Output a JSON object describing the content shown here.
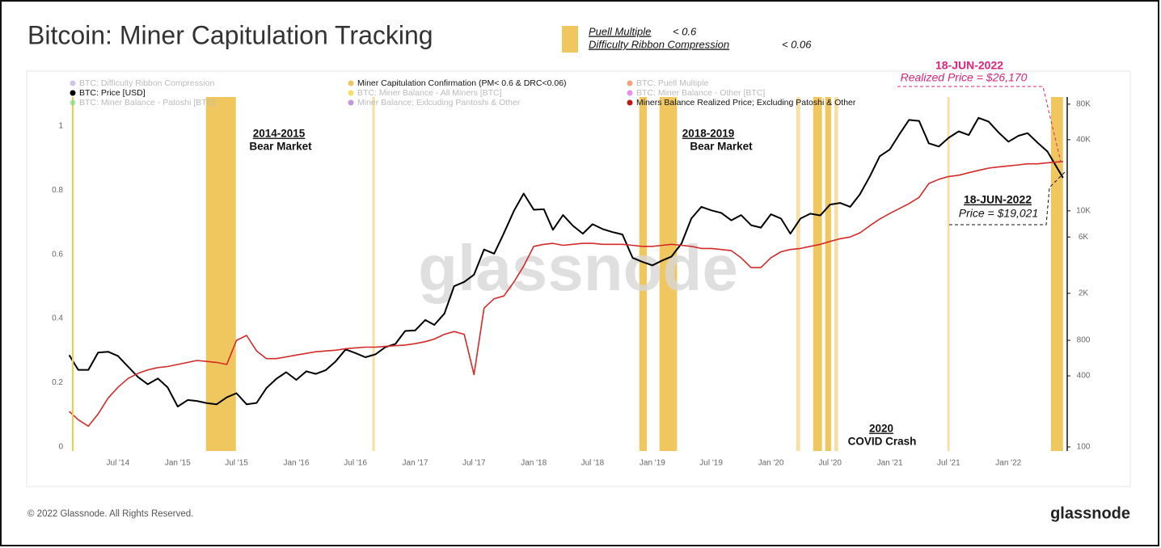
{
  "chart_data": {
    "type": "line",
    "title": "Bitcoin: Miner Capitulation Tracking",
    "header_legend": {
      "color": "#f0c75e",
      "items": [
        {
          "name": "Puell Multiple",
          "condition": "< 0.6"
        },
        {
          "name": "Difficulty Ribbon Compression",
          "condition": "< 0.06"
        }
      ]
    },
    "watermark": "glassnode",
    "x": [
      "2014-02",
      "2014-03",
      "2014-04",
      "2014-05",
      "2014-06",
      "2014-07",
      "2014-08",
      "2014-09",
      "2014-10",
      "2014-11",
      "2014-12",
      "2015-01",
      "2015-02",
      "2015-03",
      "2015-04",
      "2015-05",
      "2015-06",
      "2015-07",
      "2015-08",
      "2015-09",
      "2015-10",
      "2015-11",
      "2015-12",
      "2016-01",
      "2016-02",
      "2016-03",
      "2016-04",
      "2016-05",
      "2016-06",
      "2016-07",
      "2016-08",
      "2016-09",
      "2016-10",
      "2016-11",
      "2016-12",
      "2017-01",
      "2017-02",
      "2017-03",
      "2017-04",
      "2017-05",
      "2017-06",
      "2017-07",
      "2017-08",
      "2017-09",
      "2017-10",
      "2017-11",
      "2017-12",
      "2018-01",
      "2018-02",
      "2018-03",
      "2018-04",
      "2018-05",
      "2018-06",
      "2018-07",
      "2018-08",
      "2018-09",
      "2018-10",
      "2018-11",
      "2018-12",
      "2019-01",
      "2019-02",
      "2019-03",
      "2019-04",
      "2019-05",
      "2019-06",
      "2019-07",
      "2019-08",
      "2019-09",
      "2019-10",
      "2019-11",
      "2019-12",
      "2020-01",
      "2020-02",
      "2020-03",
      "2020-04",
      "2020-05",
      "2020-06",
      "2020-07",
      "2020-08",
      "2020-09",
      "2020-10",
      "2020-11",
      "2020-12",
      "2021-01",
      "2021-02",
      "2021-03",
      "2021-04",
      "2021-05",
      "2021-06",
      "2021-07",
      "2021-08",
      "2021-09",
      "2021-10",
      "2021-11",
      "2021-12",
      "2022-01",
      "2022-02",
      "2022-03",
      "2022-04",
      "2022-05",
      "2022-06-18"
    ],
    "series": [
      {
        "name": "BTC: Difficulty Ribbon Compression",
        "color": "#b39ddb",
        "visible": false
      },
      {
        "name": "BTC: Price [USD]",
        "color": "#000000",
        "visible": true,
        "axis": "y2",
        "values": [
          600,
          450,
          450,
          630,
          640,
          590,
          480,
          390,
          340,
          380,
          320,
          220,
          250,
          245,
          235,
          230,
          263,
          285,
          230,
          236,
          315,
          378,
          430,
          370,
          437,
          416,
          448,
          530,
          670,
          624,
          575,
          610,
          700,
          745,
          960,
          970,
          1190,
          1080,
          1350,
          2300,
          2500,
          2880,
          4700,
          4340,
          6450,
          10000,
          14000,
          10200,
          10300,
          6900,
          9200,
          7500,
          6400,
          7700,
          7000,
          6600,
          6300,
          4000,
          3700,
          3450,
          3800,
          4100,
          5300,
          8600,
          10800,
          10100,
          9600,
          8300,
          9200,
          7550,
          7200,
          9350,
          8600,
          6400,
          8600,
          9450,
          9140,
          11300,
          11650,
          10800,
          13800,
          19700,
          29000,
          33100,
          45200,
          58800,
          57700,
          37300,
          35000,
          41500,
          47100,
          43800,
          61300,
          57000,
          46300,
          38500,
          43200,
          45500,
          37700,
          31800,
          19021
        ]
      },
      {
        "name": "BTC: Miner Balance - Patoshi [BTC]",
        "color": "#69db7c",
        "visible": false
      },
      {
        "name": "Miner Capitulation Confirmation (PM< 0.6 & DRC<0.06)",
        "color": "#f0c75e",
        "visible": true,
        "bands": [
          {
            "start": "2015-03-29",
            "end": "2015-06-29"
          },
          {
            "start": "2016-08-22",
            "end": "2016-08-30"
          },
          {
            "start": "2018-11-22",
            "end": "2018-12-15"
          },
          {
            "start": "2019-01-23",
            "end": "2019-03-18"
          },
          {
            "start": "2020-03-19",
            "end": "2020-03-31"
          },
          {
            "start": "2020-05-10",
            "end": "2020-06-06"
          },
          {
            "start": "2020-06-16",
            "end": "2020-07-04"
          },
          {
            "start": "2020-07-14",
            "end": "2020-07-26"
          },
          {
            "start": "2021-06-27",
            "end": "2021-07-04"
          },
          {
            "start": "2022-05-12",
            "end": "2022-06-18"
          }
        ]
      },
      {
        "name": "BTC: Miner Balance - All Miners [BTC]",
        "color": "#f5c400",
        "visible": false
      },
      {
        "name": "Miner Balance; Exlcuding Pantoshi & Other",
        "color": "#a14fc7",
        "visible": false
      },
      {
        "name": "BTC: Puell Multiple",
        "color": "#f0642d",
        "visible": false
      },
      {
        "name": "BTC: Miner Balance - Other [BTC]",
        "color": "#e040e0",
        "visible": false
      },
      {
        "name": "Miners Balance Realized Price; Excluding Patoshi & Other",
        "color": "#c01818",
        "visible": true,
        "axis": "y2",
        "line_color": "#d42a2a",
        "values": [
          200,
          170,
          150,
          190,
          260,
          320,
          380,
          420,
          450,
          470,
          480,
          500,
          520,
          540,
          530,
          520,
          500,
          800,
          880,
          650,
          560,
          560,
          580,
          600,
          620,
          640,
          650,
          660,
          680,
          690,
          700,
          700,
          710,
          720,
          730,
          750,
          780,
          820,
          900,
          950,
          900,
          410,
          1500,
          1800,
          1900,
          2500,
          3400,
          5000,
          5200,
          5300,
          5100,
          5200,
          5300,
          5300,
          5200,
          5200,
          5200,
          5100,
          5000,
          5000,
          5100,
          5200,
          5100,
          5000,
          4800,
          4800,
          4700,
          4600,
          4000,
          3300,
          3300,
          4000,
          4500,
          4700,
          4800,
          5000,
          5200,
          5500,
          5800,
          6000,
          6500,
          7500,
          8500,
          9500,
          10500,
          11500,
          13000,
          17000,
          18500,
          19500,
          20000,
          21000,
          22000,
          23000,
          23500,
          24000,
          24500,
          25000,
          25000,
          25500,
          26170
        ]
      }
    ],
    "xlim": [
      "2014-02-12",
      "2022-07-01"
    ],
    "xticks": [
      {
        "value": "2014-07",
        "label": "Jul '14"
      },
      {
        "value": "2015-01",
        "label": "Jan '15"
      },
      {
        "value": "2015-07",
        "label": "Jul '15"
      },
      {
        "value": "2016-01",
        "label": "Jan '16"
      },
      {
        "value": "2016-07",
        "label": "Jul '16"
      },
      {
        "value": "2017-01",
        "label": "Jan '17"
      },
      {
        "value": "2017-07",
        "label": "Jul '17"
      },
      {
        "value": "2018-01",
        "label": "Jan '18"
      },
      {
        "value": "2018-07",
        "label": "Jul '18"
      },
      {
        "value": "2019-01",
        "label": "Jan '19"
      },
      {
        "value": "2019-07",
        "label": "Jul '19"
      },
      {
        "value": "2020-01",
        "label": "Jan '20"
      },
      {
        "value": "2020-07",
        "label": "Jul '20"
      },
      {
        "value": "2021-01",
        "label": "Jan '21"
      },
      {
        "value": "2021-07",
        "label": "Jul '21"
      },
      {
        "value": "2022-01",
        "label": "Jan '22"
      }
    ],
    "ylim": [
      0,
      1.09
    ],
    "yticks": [
      0,
      0.2,
      0.4,
      0.6,
      0.8,
      1
    ],
    "y2lim": [
      100,
      92000
    ],
    "y2scale": "log",
    "y2ticks": [
      100,
      400,
      800,
      {
        "value": 2000,
        "label": "2K"
      },
      {
        "value": 6000,
        "label": "6K"
      },
      {
        "value": 10000,
        "label": "10K"
      },
      {
        "value": 40000,
        "label": "40K"
      },
      {
        "value": 80000,
        "label": "80K"
      }
    ],
    "annotations": {
      "bear_2014": [
        "2014-2015",
        "Bear Market"
      ],
      "bear_2018": [
        "2018-2019",
        "Bear Market"
      ],
      "covid": [
        "2020",
        "COVID Crash"
      ],
      "realized_callout": [
        "18-JUN-2022",
        "Realized Price = $26,170"
      ],
      "price_callout": [
        "18-JUN-2022",
        "Price = $19,021"
      ]
    }
  },
  "footer": {
    "copyright": "© 2022 Glassnode. All Rights Reserved.",
    "brand": "glassnode"
  }
}
